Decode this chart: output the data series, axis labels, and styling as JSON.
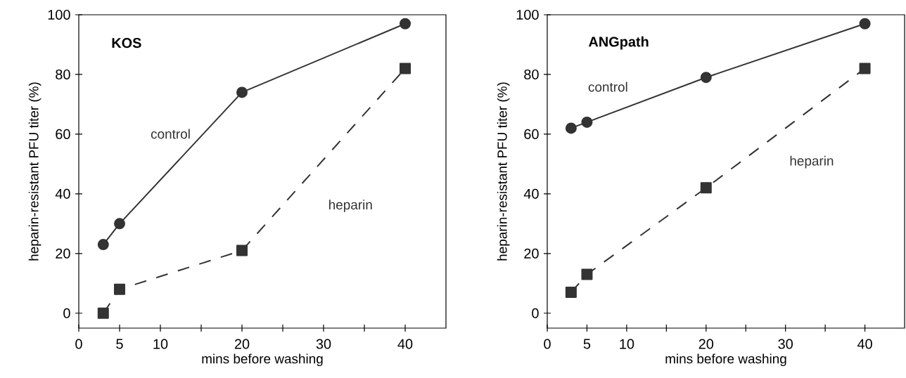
{
  "chart_data": [
    {
      "type": "line",
      "title": "KOS",
      "xlabel": "mins before washing",
      "ylabel": "heparin-resistant PFU titer (%)",
      "x": [
        3,
        5,
        20,
        40
      ],
      "xlim": [
        0,
        45
      ],
      "ylim": [
        -5,
        100
      ],
      "xticks": [
        0,
        5,
        10,
        {
          "value": 15,
          "label": null
        },
        20,
        {
          "value": 25,
          "label": null
        },
        30,
        {
          "value": 35,
          "label": null
        },
        40
      ],
      "yticks": [
        0,
        20,
        40,
        60,
        80,
        100
      ],
      "series": [
        {
          "name": "control",
          "color": "#333333",
          "values": [
            23,
            30,
            74,
            97
          ],
          "marker": "circle",
          "line_style": "solid"
        },
        {
          "name": "heparin",
          "color": "#333333",
          "values": [
            0,
            8,
            21,
            82
          ],
          "marker": "square",
          "line_style": "dashed"
        }
      ]
    },
    {
      "type": "line",
      "title": "ANGpath",
      "xlabel": "mins before washing",
      "ylabel": "heparin-resistant PFU titer (%)",
      "x": [
        3,
        5,
        20,
        40
      ],
      "xlim": [
        0,
        45
      ],
      "ylim": [
        -5,
        100
      ],
      "xticks": [
        0,
        5,
        10,
        {
          "value": 15,
          "label": null
        },
        20,
        {
          "value": 25,
          "label": null
        },
        30,
        {
          "value": 35,
          "label": null
        },
        40
      ],
      "yticks": [
        0,
        20,
        40,
        60,
        80,
        100
      ],
      "series": [
        {
          "name": "control",
          "color": "#333333",
          "values": [
            62,
            64,
            79,
            97
          ],
          "marker": "circle",
          "line_style": "solid"
        },
        {
          "name": "heparin",
          "color": "#333333",
          "values": [
            7,
            13,
            42,
            82
          ],
          "marker": "square",
          "line_style": "dashed"
        }
      ]
    }
  ]
}
